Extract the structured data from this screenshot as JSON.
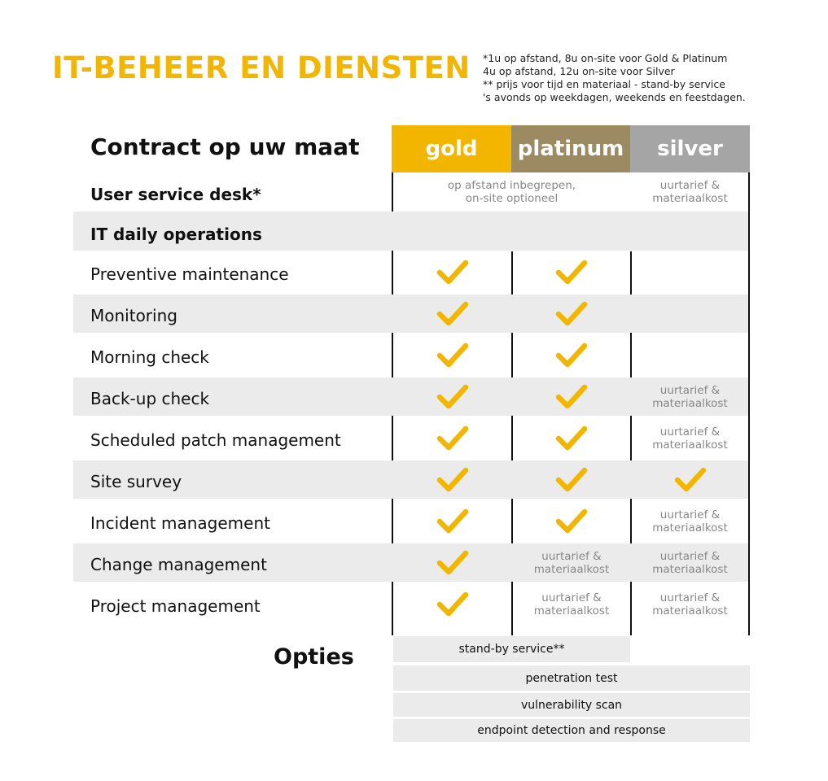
{
  "title": "IT-BEHEER EN DIENSTEN",
  "notes": [
    "*1u op afstand, 8u on-site voor Gold & Platinum",
    "4u op afstand, 12u on-site voor Silver",
    "** prijs voor tijd en materiaal - stand-by service",
    "'s avonds op weekdagen, weekends en feestdagen."
  ],
  "contract_heading": "Contract op uw maat",
  "colors": {
    "gold": "#f2b600",
    "platinum": "#9c8b62",
    "silver": "#a5a5a5",
    "check": "#f2b600",
    "band": "#ebebeb"
  },
  "plans": {
    "gold": "gold",
    "platinum": "platinum",
    "silver": "silver"
  },
  "service_desk": {
    "label": "User service desk*",
    "gold_platinum": {
      "line1": "op afstand inbegrepen,",
      "line2": "on-site optioneel"
    },
    "silver": {
      "line1": "uurtarief &",
      "line2": "materiaalkost"
    }
  },
  "daily_ops_label": "IT daily operations",
  "rate_text": {
    "line1": "uurtarief &",
    "line2": "materiaalkost"
  },
  "rows": [
    {
      "label": "Preventive maintenance",
      "gold": "check",
      "platinum": "check",
      "silver": "none"
    },
    {
      "label": "Monitoring",
      "gold": "check",
      "platinum": "check",
      "silver": "none"
    },
    {
      "label": "Morning check",
      "gold": "check",
      "platinum": "check",
      "silver": "none"
    },
    {
      "label": "Back-up check",
      "gold": "check",
      "platinum": "check",
      "silver": "rate"
    },
    {
      "label": "Scheduled patch management",
      "gold": "check",
      "platinum": "check",
      "silver": "rate"
    },
    {
      "label": "Site survey",
      "gold": "check",
      "platinum": "check",
      "silver": "check"
    },
    {
      "label": "Incident management",
      "gold": "check",
      "platinum": "check",
      "silver": "rate"
    },
    {
      "label": "Change management",
      "gold": "check",
      "platinum": "rate",
      "silver": "rate"
    },
    {
      "label": "Project management",
      "gold": "check",
      "platinum": "rate",
      "silver": "rate"
    }
  ],
  "options_heading": "Opties",
  "options": [
    "stand-by service**",
    "penetration test",
    "vulnerability scan",
    "endpoint detection and response"
  ]
}
